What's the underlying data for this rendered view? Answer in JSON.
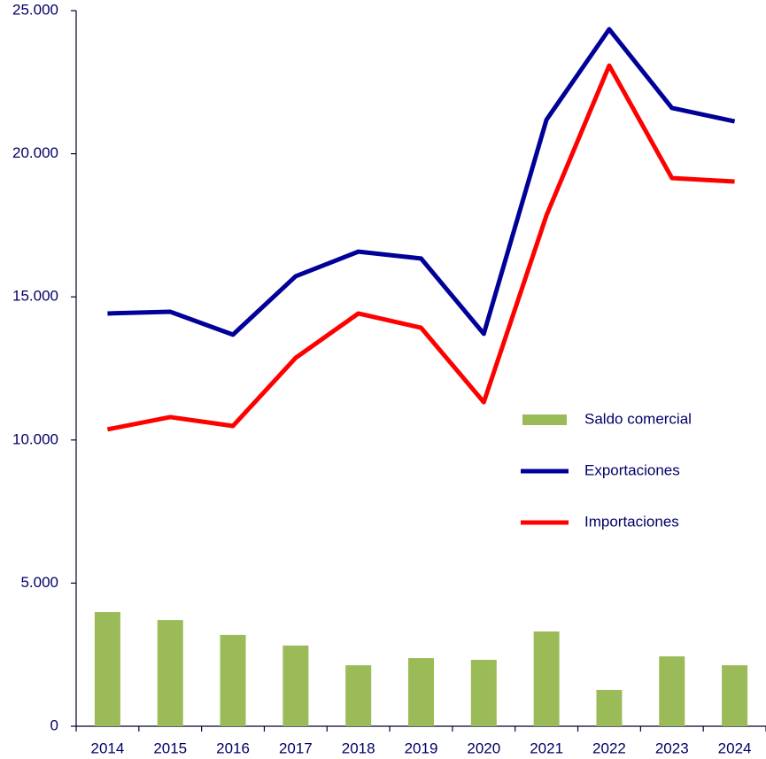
{
  "chart_data": {
    "type": "bar-line",
    "categories": [
      "2014",
      "2015",
      "2016",
      "2017",
      "2018",
      "2019",
      "2020",
      "2021",
      "2022",
      "2023",
      "2024"
    ],
    "series": [
      {
        "name": "Saldo comercial",
        "color": "#9bbb59",
        "kind": "bar",
        "values": [
          3990,
          3710,
          3190,
          2820,
          2130,
          2380,
          2320,
          3310,
          1270,
          2440,
          2130
        ]
      },
      {
        "name": "Exportaciones",
        "color": "#000099",
        "kind": "line",
        "values": [
          14420,
          14480,
          13680,
          15720,
          16580,
          16340,
          13710,
          21190,
          24350,
          21600,
          21130
        ]
      },
      {
        "name": "Importaciones",
        "color": "#ff0000",
        "kind": "line",
        "values": [
          10370,
          10800,
          10490,
          12870,
          14420,
          13920,
          11320,
          17850,
          23080,
          19150,
          19030
        ]
      }
    ],
    "ylim": [
      0,
      25000
    ],
    "yticks": [
      0,
      {
        "value": 5000,
        "label": "5.000"
      },
      {
        "value": 10000,
        "label": "10.000"
      },
      {
        "value": 15000,
        "label": "15.000"
      },
      {
        "value": 20000,
        "label": "20.000"
      },
      {
        "value": 25000,
        "label": "25.000"
      }
    ],
    "legend": "right"
  }
}
